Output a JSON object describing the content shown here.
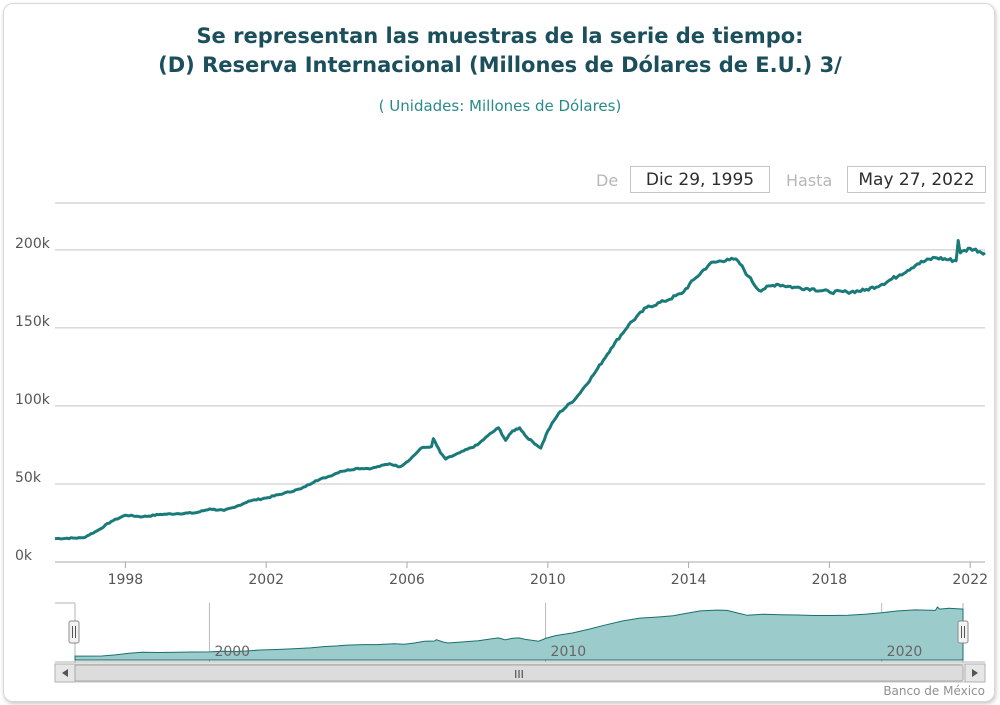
{
  "chart_data": {
    "type": "area",
    "title": "Se representan las muestras de la serie de tiempo:",
    "title_line2": "(D) Reserva Internacional (Millones de Dólares de E.U.) 3/",
    "subtitle": "( Unidades:  Millones de Dólares)",
    "x_tick_labels": [
      "1998",
      "2002",
      "2006",
      "2010",
      "2014",
      "2018",
      "2022"
    ],
    "y_tick_labels": [
      "0k",
      "50k",
      "100k",
      "150k",
      "200k"
    ],
    "ylim": [
      0,
      230000
    ],
    "xlim": [
      1996.0,
      2022.42
    ],
    "grid": true,
    "series": [
      {
        "values": [
          [
            1996.0,
            15000
          ],
          [
            1996.8,
            15500
          ],
          [
            1997.2,
            20000
          ],
          [
            1997.6,
            26000
          ],
          [
            1998.0,
            30000
          ],
          [
            1998.5,
            29000
          ],
          [
            1999.0,
            30500
          ],
          [
            1999.5,
            31000
          ],
          [
            2000.0,
            31500
          ],
          [
            2000.4,
            34000
          ],
          [
            2000.8,
            33000
          ],
          [
            2001.1,
            35000
          ],
          [
            2001.5,
            39000
          ],
          [
            2002.0,
            41000
          ],
          [
            2002.5,
            44000
          ],
          [
            2003.0,
            47000
          ],
          [
            2003.4,
            52000
          ],
          [
            2003.8,
            55000
          ],
          [
            2004.1,
            58000
          ],
          [
            2004.6,
            60000
          ],
          [
            2005.0,
            60000
          ],
          [
            2005.5,
            63000
          ],
          [
            2005.8,
            61000
          ],
          [
            2006.1,
            66000
          ],
          [
            2006.4,
            73000
          ],
          [
            2006.7,
            74000
          ],
          [
            2006.75,
            79000
          ],
          [
            2006.95,
            70000
          ],
          [
            2007.1,
            66000
          ],
          [
            2007.5,
            70000
          ],
          [
            2008.0,
            75000
          ],
          [
            2008.3,
            81000
          ],
          [
            2008.6,
            86000
          ],
          [
            2008.8,
            78000
          ],
          [
            2009.0,
            84000
          ],
          [
            2009.2,
            86000
          ],
          [
            2009.4,
            80000
          ],
          [
            2009.8,
            73000
          ],
          [
            2010.0,
            84000
          ],
          [
            2010.3,
            95000
          ],
          [
            2010.8,
            105000
          ],
          [
            2011.3,
            120000
          ],
          [
            2011.8,
            137000
          ],
          [
            2012.3,
            152000
          ],
          [
            2012.8,
            163000
          ],
          [
            2013.3,
            167000
          ],
          [
            2013.8,
            172000
          ],
          [
            2014.2,
            182000
          ],
          [
            2014.6,
            191000
          ],
          [
            2015.1,
            194000
          ],
          [
            2015.4,
            193000
          ],
          [
            2015.7,
            183000
          ],
          [
            2016.0,
            174000
          ],
          [
            2016.5,
            178000
          ],
          [
            2017.0,
            176000
          ],
          [
            2017.5,
            175000
          ],
          [
            2018.0,
            173000
          ],
          [
            2018.5,
            173000
          ],
          [
            2019.0,
            174000
          ],
          [
            2019.5,
            178000
          ],
          [
            2020.0,
            184000
          ],
          [
            2020.5,
            191000
          ],
          [
            2021.0,
            195000
          ],
          [
            2021.6,
            193000
          ],
          [
            2021.66,
            206000
          ],
          [
            2021.72,
            198000
          ],
          [
            2022.0,
            201000
          ],
          [
            2022.42,
            198000
          ]
        ]
      }
    ],
    "navigator": {
      "x_tick_labels": [
        "2000",
        "2010",
        "2020"
      ],
      "scrollbar_grip": "III"
    }
  },
  "range_selector": {
    "from_label": "De",
    "from_value": "Dic 29, 1995",
    "to_label": "Hasta",
    "to_value": "May 27, 2022"
  },
  "credits": "Banco de México",
  "colors": {
    "series": "#1a7a7a",
    "navigator_fill": "#9ccbcb",
    "title": "#1b4f5c"
  },
  "icons": {
    "scroll_left": "arrow-left-icon",
    "scroll_right": "arrow-right-icon",
    "handle": "drag-handle-icon"
  }
}
